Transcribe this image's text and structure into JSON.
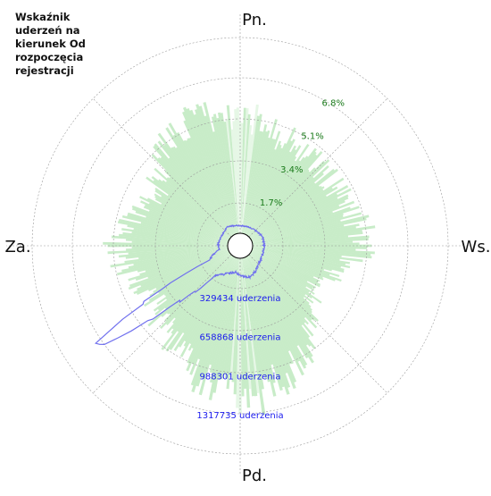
{
  "chart_data": {
    "type": "polar",
    "title": "Wskaźnik\nuderzeń  na\nkierunek Od\nrozpoczęcia\nrejestracji",
    "direction_labels": {
      "north": "Pn.",
      "east": "Ws.",
      "south": "Pd.",
      "west": "Za."
    },
    "grid": true,
    "percent_ring_labels": [
      "1.7%",
      "3.4%",
      "5.1%",
      "6.8%"
    ],
    "percent_ring_values": [
      1.7,
      3.4,
      5.1,
      6.8
    ],
    "percent_scale_max": 8.5,
    "count_ring_labels": [
      "329434 uderzenia",
      "658868 uderzenia",
      "988301 uderzenia",
      "1317735 uderzenia"
    ],
    "count_ring_values": [
      329434,
      658868,
      988301,
      1317735
    ],
    "count_scale_max": 1647169,
    "series": [
      {
        "type": "bar",
        "unit": "percent",
        "color": "#c8ecc8",
        "highlight_color": "#e6f7e6",
        "directions_deg": [
          0,
          30,
          60,
          90,
          120,
          150,
          180,
          210,
          240,
          270,
          300,
          330
        ],
        "values": [
          5.2,
          4.5,
          4.3,
          5.0,
          3.0,
          5.2,
          6.5,
          4.9,
          3.9,
          5.0,
          3.7,
          5.4
        ]
      },
      {
        "type": "line",
        "unit": "count",
        "color": "#7070ee",
        "directions_deg": [
          0,
          20,
          45,
          70,
          90,
          110,
          135,
          150,
          160,
          175,
          190,
          200,
          210,
          220,
          228,
          235,
          245,
          260,
          275,
          300,
          325,
          345
        ],
        "values": [
          62000,
          65000,
          75000,
          98000,
          96000,
          95000,
          110000,
          145000,
          170000,
          155000,
          120000,
          140000,
          170000,
          220000,
          600000,
          1400000,
          180000,
          75000,
          80000,
          70000,
          85000,
          70000
        ]
      }
    ],
    "center_label": ""
  }
}
